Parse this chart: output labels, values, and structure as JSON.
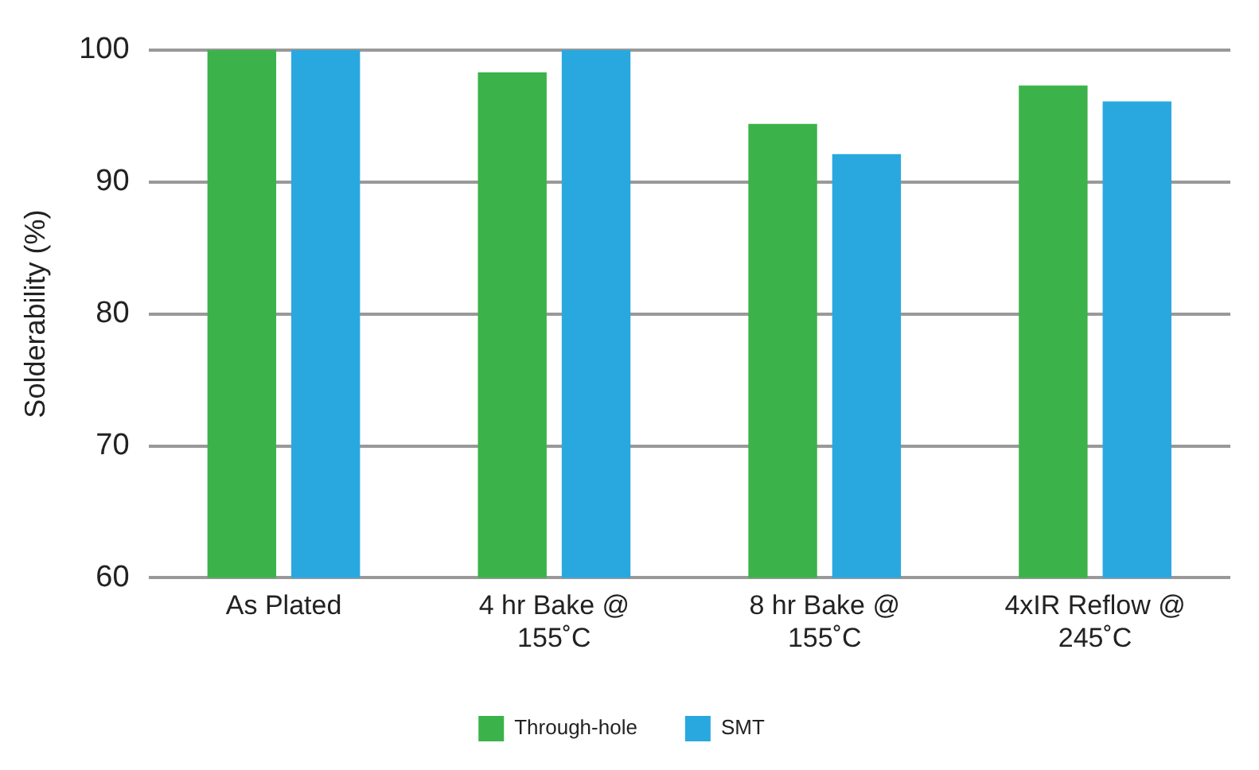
{
  "chart_data": {
    "type": "bar",
    "ylabel": "Solderability (%)",
    "categories": [
      "As Plated",
      "4 hr Bake @ 155˚C",
      "8 hr Bake @ 155˚C",
      "4xIR Reflow @ 245˚C"
    ],
    "series": [
      {
        "name": "Through-hole",
        "color": "#3bb34a",
        "values": [
          100,
          98.3,
          94.4,
          97.3
        ]
      },
      {
        "name": "SMT",
        "color": "#29a8e0",
        "values": [
          100,
          100,
          92.1,
          96.1
        ]
      }
    ],
    "ylim": [
      60,
      100
    ],
    "yticks": [
      60,
      70,
      80,
      90,
      100
    ],
    "grid": "y",
    "legend": "bottom"
  }
}
